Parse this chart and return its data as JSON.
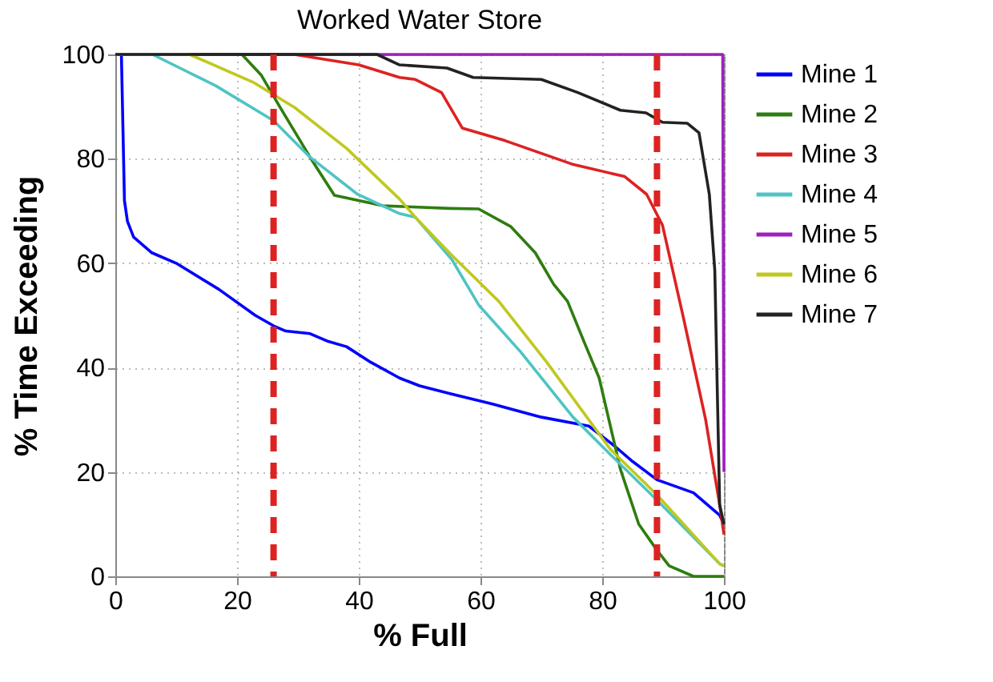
{
  "chart_data": {
    "type": "line",
    "title": "Worked Water Store",
    "xlabel": "% Full",
    "ylabel": "% Time Exceeding",
    "xlim": [
      0,
      100
    ],
    "ylim": [
      0,
      100
    ],
    "xticks": [
      0,
      20,
      40,
      60,
      80,
      100
    ],
    "yticks": [
      0,
      20,
      40,
      60,
      80,
      100
    ],
    "grid": true,
    "legend": "right",
    "marker": "none",
    "line_style": "solid",
    "series": [
      {
        "name": "Mine 1",
        "color": "#0000ff",
        "x": [
          1,
          1.5,
          2,
          3,
          6,
          10,
          17,
          23,
          26,
          28,
          32,
          35,
          38,
          42,
          46.7,
          50,
          55,
          62,
          70,
          77.8,
          82,
          85,
          89,
          95,
          99.3,
          100
        ],
        "values": [
          100,
          72,
          68,
          65,
          62,
          60,
          55,
          50,
          48,
          47,
          46.5,
          45,
          44,
          41,
          38,
          36.5,
          35,
          33,
          30.5,
          28.8,
          25,
          22,
          18.5,
          16,
          11.7,
          10
        ]
      },
      {
        "name": "Mine 2",
        "color": "#2e7d10",
        "x": [
          0,
          20.8,
          24,
          27,
          32,
          36,
          44,
          55,
          59.7,
          65,
          69,
          72,
          74.3,
          77,
          79.5,
          83,
          86,
          89,
          91,
          95,
          100
        ],
        "values": [
          100,
          100,
          96,
          90,
          80.3,
          73,
          71,
          70.5,
          70.4,
          67,
          62,
          56,
          52.7,
          45,
          38,
          20.5,
          10,
          5,
          2,
          0,
          0
        ]
      },
      {
        "name": "Mine 3",
        "color": "#dd2222",
        "x": [
          0,
          29.4,
          40,
          46.7,
          49.3,
          53.6,
          57,
          64,
          75,
          83.7,
          87.3,
          89.9,
          93.3,
          97,
          99.3,
          100
        ],
        "values": [
          100,
          100,
          98,
          95.6,
          95.2,
          92.7,
          85.9,
          83.5,
          79,
          76.6,
          73.2,
          67.3,
          49.8,
          30,
          13.7,
          8
        ]
      },
      {
        "name": "Mine 4",
        "color": "#4fc4c4",
        "x": [
          0,
          6.1,
          16.5,
          26,
          32,
          39.8,
          46.7,
          49.3,
          55.3,
          59.7,
          66.6,
          75.2,
          81.3,
          89,
          99.3,
          100
        ],
        "values": [
          100,
          100,
          94,
          87.3,
          80.3,
          73.2,
          69.5,
          68.8,
          60.7,
          52,
          43,
          30.5,
          23.4,
          14.6,
          2.4,
          2
        ]
      },
      {
        "name": "Mine 5",
        "color": "#a020c0",
        "x": [
          0,
          99.8,
          100
        ],
        "values": [
          100,
          100,
          20
        ]
      },
      {
        "name": "Mine 6",
        "color": "#c0c81e",
        "x": [
          0,
          12.2,
          22.6,
          29.5,
          38,
          46.7,
          49.3,
          55.3,
          63,
          70.9,
          81.3,
          89,
          99.3,
          100
        ],
        "values": [
          100,
          100,
          94.7,
          89.8,
          82,
          72.3,
          68.8,
          61.5,
          52.7,
          41,
          24.4,
          15.6,
          2.4,
          2
        ]
      },
      {
        "name": "Mine 7",
        "color": "#222222",
        "x": [
          0,
          43,
          46.7,
          54.5,
          58.8,
          70,
          76,
          83,
          87.2,
          89.9,
          94,
          95.9,
          97.6,
          98.5,
          99.3,
          100
        ],
        "values": [
          100,
          100,
          98,
          97.4,
          95.6,
          95.2,
          92.7,
          89.3,
          88.8,
          87,
          86.8,
          85,
          73.2,
          58.6,
          13.7,
          10
        ]
      }
    ],
    "ref_lines": [
      {
        "axis": "x",
        "value": 26,
        "color": "#dd2222",
        "line_style": "dashed"
      },
      {
        "axis": "x",
        "value": 89,
        "color": "#dd2222",
        "line_style": "dashed"
      }
    ]
  }
}
